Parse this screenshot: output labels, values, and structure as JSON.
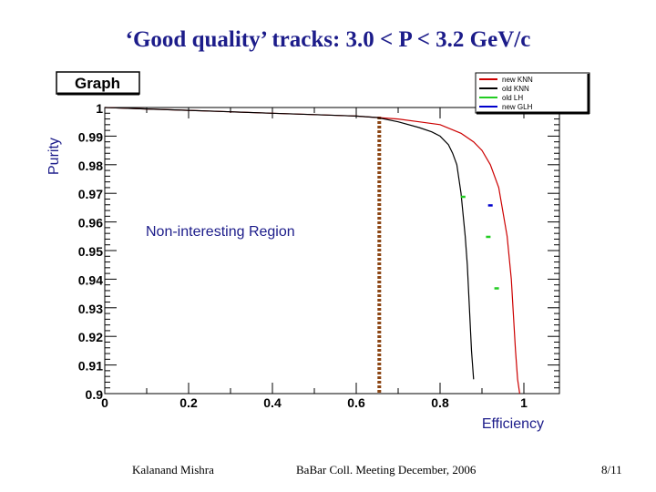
{
  "slide": {
    "title": "‘Good quality’ tracks:  3.0 < P < 3.2 GeV/c",
    "footer_left": "Kalanand Mishra",
    "footer_center": "BaBar Coll. Meeting December, 2006",
    "footer_right": "8/11"
  },
  "colors": {
    "title": "#1c1c8a",
    "axis_labels": "#1c1c8a",
    "new_knn": "#cc0000",
    "old_knn": "#000000",
    "old_lh": "#22cc22",
    "new_glh": "#0000cc",
    "cut_line": "#8b4513"
  },
  "chart_data": {
    "type": "line",
    "title": "Graph",
    "xlabel": "Efficiency",
    "ylabel": "Purity",
    "xlim": [
      0,
      1.1
    ],
    "ylim": [
      0.9,
      1.0
    ],
    "x_ticks": [
      "0",
      "0.2",
      "0.4",
      "0.6",
      "0.8",
      "1"
    ],
    "x_tick_values": [
      0,
      0.2,
      0.4,
      0.6,
      0.8,
      1.0
    ],
    "y_ticks": [
      "0.9",
      "0.91",
      "0.92",
      "0.93",
      "0.94",
      "0.95",
      "0.96",
      "0.97",
      "0.98",
      "0.99",
      "1"
    ],
    "y_tick_values": [
      0.9,
      0.91,
      0.92,
      0.93,
      0.94,
      0.95,
      0.96,
      0.97,
      0.98,
      0.99,
      1.0
    ],
    "grid": false,
    "legend_position": "top-right",
    "annotation": "Non-interesting Region",
    "cut_x": 0.655,
    "series": [
      {
        "name": "new KNN",
        "style": "line",
        "color": "#cc0000",
        "x": [
          0.0,
          0.1,
          0.2,
          0.3,
          0.4,
          0.5,
          0.6,
          0.65,
          0.7,
          0.75,
          0.8,
          0.85,
          0.88,
          0.9,
          0.92,
          0.94,
          0.96,
          0.97,
          0.98,
          0.985,
          0.99
        ],
        "y": [
          1.0,
          0.9995,
          0.999,
          0.9985,
          0.998,
          0.9975,
          0.997,
          0.9965,
          0.996,
          0.995,
          0.994,
          0.991,
          0.988,
          0.985,
          0.98,
          0.972,
          0.955,
          0.94,
          0.915,
          0.905,
          0.9
        ]
      },
      {
        "name": "old KNN",
        "style": "line",
        "color": "#000000",
        "x": [
          0.0,
          0.1,
          0.2,
          0.3,
          0.4,
          0.5,
          0.6,
          0.65,
          0.7,
          0.75,
          0.78,
          0.8,
          0.82,
          0.83,
          0.84,
          0.85,
          0.86,
          0.865,
          0.87,
          0.875,
          0.88
        ],
        "y": [
          1.0,
          0.9995,
          0.999,
          0.9985,
          0.998,
          0.9975,
          0.997,
          0.9965,
          0.995,
          0.993,
          0.9915,
          0.99,
          0.987,
          0.984,
          0.98,
          0.97,
          0.955,
          0.945,
          0.93,
          0.915,
          0.905
        ]
      },
      {
        "name": "old LH",
        "style": "points",
        "color": "#22cc22",
        "x": [
          0.855,
          0.915,
          0.935
        ],
        "y": [
          0.9688,
          0.9548,
          0.9368
        ]
      },
      {
        "name": "new GLH",
        "style": "points",
        "color": "#0000cc",
        "x": [
          0.92
        ],
        "y": [
          0.9658
        ]
      }
    ]
  }
}
